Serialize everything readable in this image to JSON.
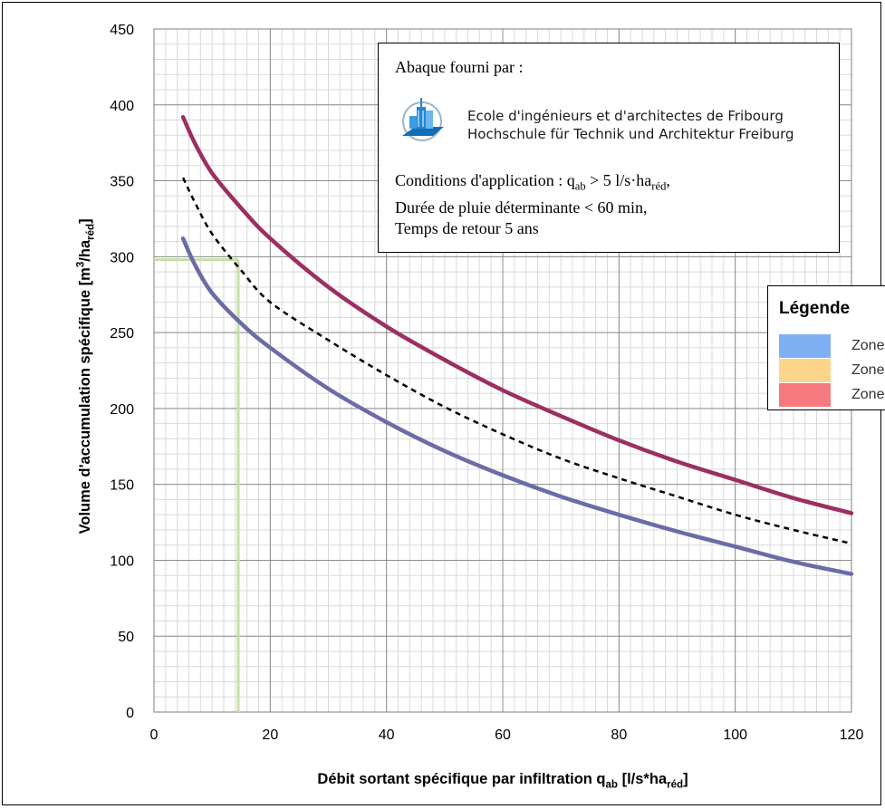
{
  "chart_data": {
    "type": "line",
    "title": "",
    "xlabel": "Débit sortant spécifique par infiltration q",
    "xlabel_sub": "ab",
    "xlabel_suffix": " [l/s*ha",
    "xlabel_suffix_sub": "réd",
    "xlabel_end": "]",
    "ylabel": "Volume d'accumulation spécifique [m",
    "ylabel_sup": "3",
    "ylabel_mid": "/ha",
    "ylabel_sub": "réd",
    "ylabel_end": "]",
    "xlim": [
      0,
      120
    ],
    "ylim": [
      0,
      450
    ],
    "x_ticks": [
      "0",
      "20",
      "40",
      "60",
      "80",
      "100",
      "120"
    ],
    "y_ticks": [
      "0",
      "50",
      "100",
      "150",
      "200",
      "250",
      "300",
      "350",
      "400",
      "450"
    ],
    "grid": true,
    "minor_grid": {
      "x_step": 2,
      "y_step": 10
    },
    "series": [
      {
        "color": "#9c2f62",
        "style": "solid",
        "x": [
          5,
          7,
          10,
          15,
          20,
          30,
          40,
          50,
          60,
          70,
          80,
          90,
          100,
          110,
          120
        ],
        "values": [
          392,
          375,
          355,
          332,
          312,
          280,
          254,
          232,
          212,
          195,
          179,
          165,
          153,
          141,
          131
        ]
      },
      {
        "color": "#000000",
        "style": "dashed",
        "x": [
          5,
          7,
          10,
          15,
          20,
          30,
          40,
          50,
          60,
          70,
          80,
          90,
          100,
          110,
          120
        ],
        "values": [
          352,
          336,
          315,
          291,
          270,
          245,
          222,
          201,
          183,
          167,
          154,
          142,
          130,
          120,
          111
        ]
      },
      {
        "color": "#6b6ba8",
        "style": "solid",
        "x": [
          5,
          7,
          10,
          15,
          20,
          30,
          40,
          50,
          60,
          70,
          80,
          90,
          100,
          110,
          120
        ],
        "values": [
          312,
          295,
          276,
          256,
          240,
          213,
          191,
          172,
          156,
          142,
          130,
          119,
          109,
          99,
          91
        ]
      }
    ],
    "reading_guide": {
      "color": "#c6dfa6",
      "x": 14.5,
      "y": 298
    }
  },
  "info_box": {
    "heading": "Abaque fourni par :",
    "school_line1": "Ecole d'ingénieurs et d'architectes de Fribourg",
    "school_line2": "Hochschule für Technik und Architektur Freiburg",
    "cond1_prefix": "Conditions d'application : q",
    "cond1_sub1": "ab",
    "cond1_mid": " > 5 l/s·ha",
    "cond1_sub2": "réd",
    "cond1_end": ",",
    "cond2": "Durée de pluie déterminante < 60 min,",
    "cond3": "Temps de retour 5 ans",
    "logo_icon": "school-building-logo"
  },
  "legend": {
    "title": "Légende",
    "items": [
      {
        "label": "Zone",
        "color": "#7fb0f4"
      },
      {
        "label": "Zone",
        "color": "#fdd58a"
      },
      {
        "label": "Zone",
        "color": "#f47a7f"
      }
    ]
  }
}
